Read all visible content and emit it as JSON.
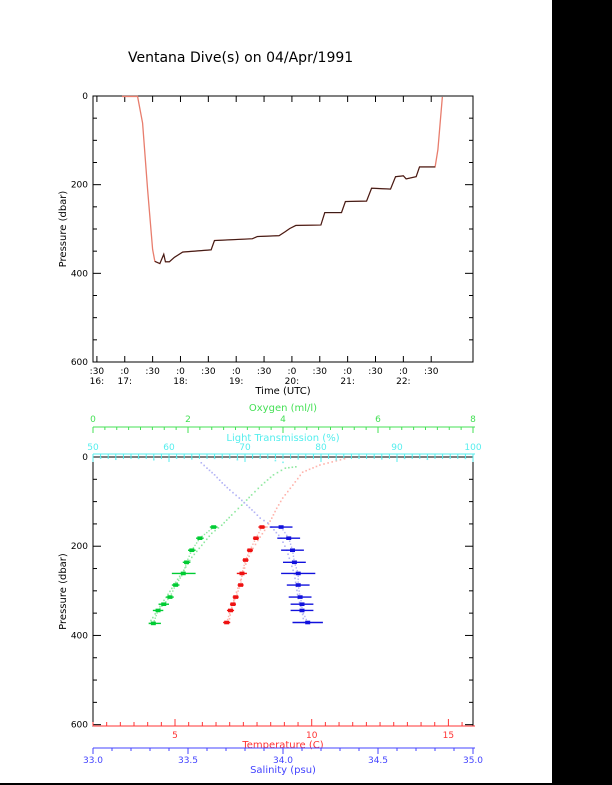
{
  "title": "Ventana Dive(s) on 04/Apr/1991",
  "colors": {
    "frame": "#000000",
    "track": "#e87d6d",
    "track_dark": "#3c1d18",
    "oxygen": "#44e055",
    "light": "#55eeee",
    "temperature": "#ff3333",
    "salinity": "#4444ff",
    "background": "#ffffff",
    "border_bar": "#000000"
  },
  "chart_data": [
    {
      "type": "line",
      "id": "depth-time-plot",
      "xlabel": "Time (UTC)",
      "ylabel": "Pressure (dbar)",
      "x_range_hours": [
        16.43,
        23.25
      ],
      "y_range": [
        0,
        600
      ],
      "y_major_ticks": [
        0,
        200,
        400,
        600
      ],
      "y_major_labels": [
        "0",
        "200",
        "400",
        "600"
      ],
      "y_minor_step": 50,
      "time_ticks": [
        {
          "h": 16.5,
          "m": ":30",
          "hr": "16:"
        },
        {
          "h": 17.0,
          "m": ":0",
          "hr": "17:"
        },
        {
          "h": 17.5,
          "m": ":30",
          "hr": ""
        },
        {
          "h": 18.0,
          "m": ":0",
          "hr": "18:"
        },
        {
          "h": 18.5,
          "m": ":30",
          "hr": ""
        },
        {
          "h": 19.0,
          "m": ":0",
          "hr": "19:"
        },
        {
          "h": 19.5,
          "m": ":30",
          "hr": ""
        },
        {
          "h": 20.0,
          "m": ":0",
          "hr": "20:"
        },
        {
          "h": 20.5,
          "m": ":30",
          "hr": ""
        },
        {
          "h": 21.0,
          "m": ":0",
          "hr": "21:"
        },
        {
          "h": 21.5,
          "m": ":30",
          "hr": ""
        },
        {
          "h": 22.0,
          "m": ":0",
          "hr": "22:"
        },
        {
          "h": 22.5,
          "m": ":30",
          "hr": ""
        }
      ],
      "series": [
        {
          "name": "dive-pressure-track",
          "color": "#e87d6d",
          "dark_color": "#3c1d18",
          "dark_segment": [
            5,
            32
          ],
          "points": [
            [
              16.95,
              1
            ],
            [
              17.23,
              1
            ],
            [
              17.32,
              61
            ],
            [
              17.41,
              211
            ],
            [
              17.5,
              346
            ],
            [
              17.54,
              373
            ],
            [
              17.63,
              378
            ],
            [
              17.7,
              357
            ],
            [
              17.73,
              374
            ],
            [
              17.8,
              374
            ],
            [
              17.89,
              364
            ],
            [
              18.04,
              352
            ],
            [
              18.55,
              347
            ],
            [
              18.61,
              326
            ],
            [
              19.29,
              322
            ],
            [
              19.38,
              317
            ],
            [
              19.77,
              315
            ],
            [
              19.88,
              306
            ],
            [
              19.96,
              299
            ],
            [
              20.07,
              292
            ],
            [
              20.52,
              291
            ],
            [
              20.59,
              263
            ],
            [
              20.89,
              263
            ],
            [
              20.96,
              238
            ],
            [
              21.34,
              237
            ],
            [
              21.43,
              208
            ],
            [
              21.77,
              210
            ],
            [
              21.86,
              182
            ],
            [
              22.0,
              180
            ],
            [
              22.05,
              187
            ],
            [
              22.23,
              182
            ],
            [
              22.29,
              160
            ],
            [
              22.57,
              160
            ],
            [
              22.62,
              121
            ],
            [
              22.7,
              2
            ]
          ]
        }
      ]
    },
    {
      "type": "scatter",
      "id": "profile-plot",
      "ylabel": "Pressure (dbar)",
      "y_range": [
        0,
        603
      ],
      "y_major_ticks": [
        0,
        200,
        400,
        600
      ],
      "y_major_labels": [
        "0",
        "200",
        "400",
        "600"
      ],
      "y_minor_step": 50,
      "x_axes": [
        {
          "id": "oxygen",
          "label": "Oxygen (ml/l)",
          "color": "#44e055",
          "range": [
            0,
            8
          ],
          "majors": [
            0,
            2,
            4,
            6,
            8
          ],
          "major_labels": [
            "0",
            "2",
            "4",
            "6",
            "8"
          ],
          "minor_step": 0.25
        },
        {
          "id": "light",
          "label": "Light Transmission (%)",
          "color": "#55eeee",
          "range": [
            50,
            100
          ],
          "majors": [
            50,
            60,
            70,
            80,
            90,
            100
          ],
          "major_labels": [
            "50",
            "60",
            "70",
            "80",
            "90",
            "100"
          ],
          "minor_step": 1
        },
        {
          "id": "temperature",
          "label": "Temperature (C)",
          "color": "#ff3333",
          "range": [
            2,
            15.9
          ],
          "majors": [
            5,
            10,
            15
          ],
          "major_labels": [
            "5",
            "10",
            "15"
          ],
          "minor_step": 0.5
        },
        {
          "id": "salinity",
          "label": "Salinity (psu)",
          "color": "#4444ff",
          "range": [
            33,
            35
          ],
          "majors": [
            33,
            33.5,
            34,
            34.5,
            35
          ],
          "major_labels": [
            "33.0",
            "33.5",
            "34.0",
            "34.5",
            "35.0"
          ],
          "minor_step": 0.1
        }
      ],
      "series": [
        {
          "name": "oxygen-downcast",
          "axis": "oxygen",
          "type": "dots",
          "color": "#8fe8a0",
          "points": [
            [
              4.27,
              22
            ],
            [
              4.05,
              25
            ],
            [
              3.8,
              40
            ],
            [
              3.55,
              63
            ],
            [
              3.34,
              85
            ],
            [
              3.13,
              108
            ],
            [
              2.92,
              130
            ],
            [
              2.71,
              153
            ],
            [
              2.5,
              171
            ],
            [
              2.29,
              198
            ],
            [
              2.08,
              225
            ],
            [
              1.91,
              254
            ],
            [
              1.74,
              281
            ],
            [
              1.58,
              308
            ],
            [
              1.41,
              335
            ],
            [
              1.26,
              360
            ],
            [
              1.18,
              373
            ]
          ]
        },
        {
          "name": "temperature-downcast",
          "axis": "temperature",
          "type": "dots",
          "color": "#ffb3ab",
          "points": [
            [
              11.2,
              4
            ],
            [
              10.3,
              18
            ],
            [
              9.67,
              34
            ],
            [
              9.31,
              63
            ],
            [
              8.94,
              92
            ],
            [
              8.72,
              115
            ],
            [
              8.54,
              137
            ],
            [
              8.36,
              157
            ],
            [
              8.03,
              187
            ],
            [
              7.77,
              214
            ],
            [
              7.59,
              240
            ],
            [
              7.45,
              267
            ],
            [
              7.3,
              294
            ],
            [
              7.15,
              321
            ],
            [
              7.04,
              346
            ],
            [
              6.97,
              371
            ]
          ]
        },
        {
          "name": "salinity-downcast",
          "axis": "salinity",
          "type": "dots",
          "color": "#b3b3f5",
          "points": [
            [
              33.57,
              13
            ],
            [
              33.6,
              25
            ],
            [
              33.64,
              40
            ],
            [
              33.68,
              58
            ],
            [
              33.72,
              74
            ],
            [
              33.77,
              92
            ],
            [
              33.81,
              108
            ],
            [
              33.85,
              124
            ],
            [
              33.88,
              137
            ],
            [
              33.92,
              148
            ],
            [
              33.94,
              157
            ],
            [
              33.99,
              182
            ],
            [
              34.02,
              209
            ],
            [
              34.04,
              236
            ],
            [
              34.06,
              263
            ],
            [
              34.07,
              290
            ],
            [
              34.08,
              317
            ],
            [
              34.1,
              344
            ],
            [
              34.11,
              371
            ]
          ]
        },
        {
          "name": "light-transmission-scatter",
          "axis": "light",
          "type": "scatter",
          "color": "#7df0f0",
          "points": [
            [
              51,
              2
            ],
            [
              53,
              5
            ],
            [
              56,
              3
            ],
            [
              58,
              6
            ],
            [
              61,
              2
            ],
            [
              63,
              4
            ],
            [
              66,
              3
            ],
            [
              69,
              6
            ],
            [
              72,
              2
            ],
            [
              74,
              8
            ],
            [
              75,
              12
            ],
            [
              77,
              4
            ],
            [
              80,
              3
            ],
            [
              82,
              6
            ],
            [
              85,
              2
            ],
            [
              88,
              4
            ],
            [
              91,
              3
            ],
            [
              94,
              5
            ],
            [
              97,
              2
            ],
            [
              99,
              3
            ]
          ]
        },
        {
          "name": "oxygen-upcast-stops",
          "axis": "oxygen",
          "type": "staircase",
          "color": "#00cc33",
          "connector_color": "#8fe8a0",
          "stops": [
            [
              2.54,
              157,
              2.46,
              2.62
            ],
            [
              2.25,
              182,
              2.17,
              2.33
            ],
            [
              2.08,
              209,
              2.0,
              2.16
            ],
            [
              1.97,
              236,
              1.89,
              2.05
            ],
            [
              1.9,
              261,
              1.66,
              2.16
            ],
            [
              1.74,
              287,
              1.66,
              1.82
            ],
            [
              1.62,
              314,
              1.54,
              1.7
            ],
            [
              1.49,
              330,
              1.38,
              1.6
            ],
            [
              1.37,
              344,
              1.26,
              1.48
            ],
            [
              1.27,
              373,
              1.18,
              1.43
            ]
          ]
        },
        {
          "name": "temperature-upcast-stops",
          "axis": "temperature",
          "type": "staircase",
          "color": "#ee1111",
          "connector_color": "#ffb3ab",
          "stops": [
            [
              8.18,
              157,
              8.05,
              8.31
            ],
            [
              7.96,
              182,
              7.85,
              8.07
            ],
            [
              7.74,
              209,
              7.63,
              7.85
            ],
            [
              7.58,
              231,
              7.47,
              7.69
            ],
            [
              7.45,
              261,
              7.26,
              7.63
            ],
            [
              7.4,
              287,
              7.29,
              7.51
            ],
            [
              7.22,
              314,
              7.11,
              7.33
            ],
            [
              7.12,
              330,
              7.01,
              7.23
            ],
            [
              7.03,
              344,
              6.9,
              7.16
            ],
            [
              6.89,
              371,
              6.76,
              7.02
            ]
          ]
        },
        {
          "name": "salinity-upcast-stops",
          "axis": "salinity",
          "type": "staircase",
          "color": "#1111dd",
          "connector_color": "#b3b3f5",
          "stops": [
            [
              33.99,
              157,
              33.93,
              34.05
            ],
            [
              34.03,
              182,
              33.97,
              34.09
            ],
            [
              34.05,
              209,
              33.99,
              34.11
            ],
            [
              34.06,
              236,
              34.0,
              34.12
            ],
            [
              34.08,
              261,
              33.99,
              34.17
            ],
            [
              34.08,
              287,
              34.02,
              34.14
            ],
            [
              34.09,
              314,
              34.03,
              34.15
            ],
            [
              34.1,
              330,
              34.04,
              34.16
            ],
            [
              34.1,
              344,
              34.04,
              34.16
            ],
            [
              34.13,
              371,
              34.05,
              34.21
            ]
          ]
        }
      ]
    }
  ]
}
